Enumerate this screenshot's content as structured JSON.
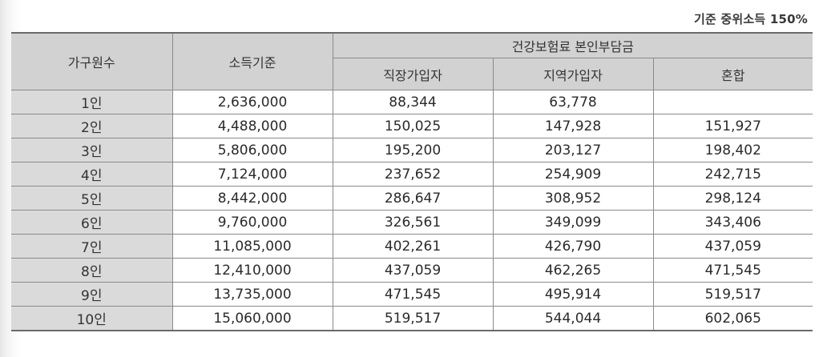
{
  "note": "기준 중위소득 150%",
  "table": {
    "headers": {
      "household": "가구원수",
      "income": "소득기준",
      "premium_group": "건강보험료 본인부담금",
      "employee": "직장가입자",
      "regional": "지역가입자",
      "mixed": "혼합"
    },
    "rows": [
      {
        "household": "1인",
        "income": "2,636,000",
        "employee": "88,344",
        "regional": "63,778",
        "mixed": ""
      },
      {
        "household": "2인",
        "income": "4,488,000",
        "employee": "150,025",
        "regional": "147,928",
        "mixed": "151,927"
      },
      {
        "household": "3인",
        "income": "5,806,000",
        "employee": "195,200",
        "regional": "203,127",
        "mixed": "198,402"
      },
      {
        "household": "4인",
        "income": "7,124,000",
        "employee": "237,652",
        "regional": "254,909",
        "mixed": "242,715"
      },
      {
        "household": "5인",
        "income": "8,442,000",
        "employee": "286,647",
        "regional": "308,952",
        "mixed": "298,124"
      },
      {
        "household": "6인",
        "income": "9,760,000",
        "employee": "326,561",
        "regional": "349,099",
        "mixed": "343,406"
      },
      {
        "household": "7인",
        "income": "11,085,000",
        "employee": "402,261",
        "regional": "426,790",
        "mixed": "437,059"
      },
      {
        "household": "8인",
        "income": "12,410,000",
        "employee": "437,059",
        "regional": "462,265",
        "mixed": "471,545"
      },
      {
        "household": "9인",
        "income": "13,735,000",
        "employee": "471,545",
        "regional": "495,914",
        "mixed": "519,517"
      },
      {
        "household": "10인",
        "income": "15,060,000",
        "employee": "519,517",
        "regional": "544,044",
        "mixed": "602,065"
      }
    ]
  }
}
